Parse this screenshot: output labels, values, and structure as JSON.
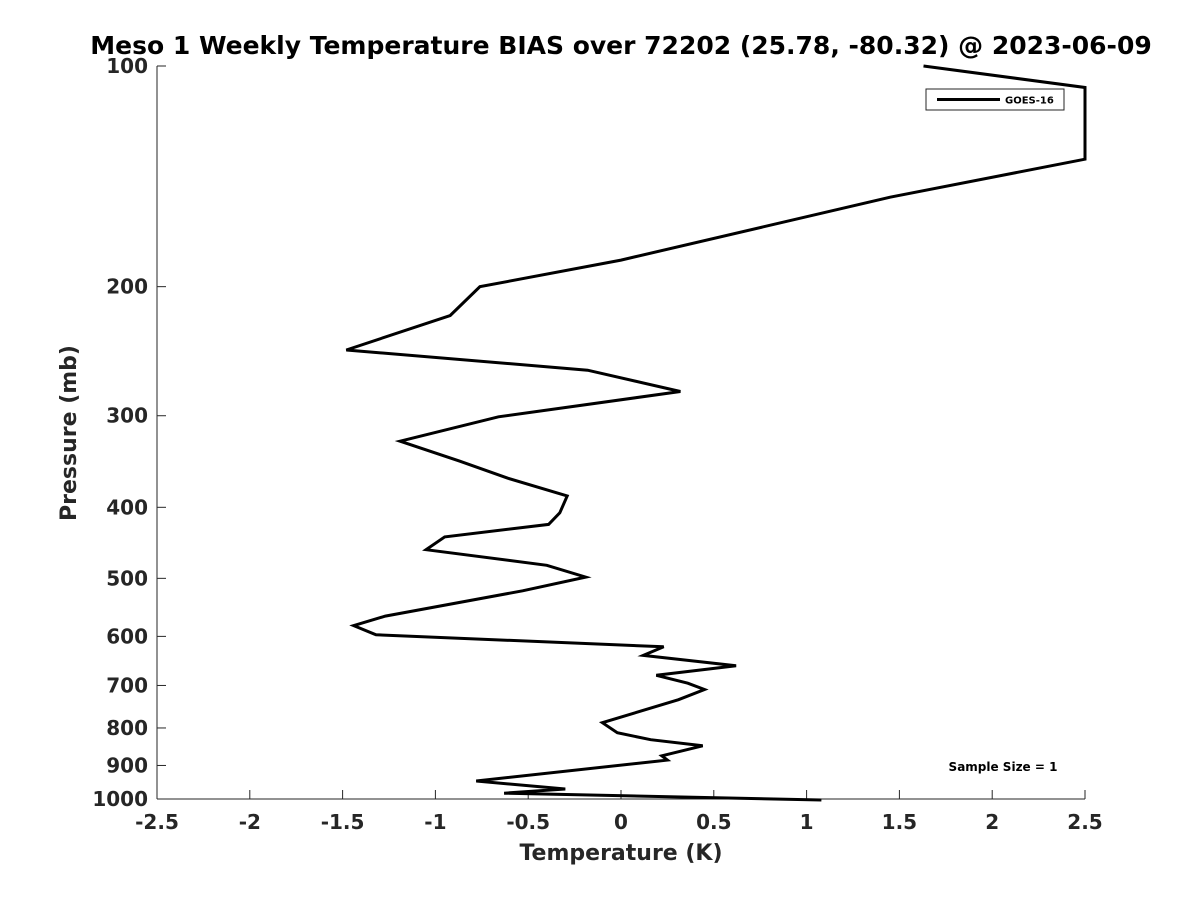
{
  "chart_data": {
    "type": "line",
    "title": "Meso 1 Weekly Temperature BIAS over 72202 (25.78, -80.32) @ 2023-06-09",
    "xlabel": "Temperature (K)",
    "ylabel": "Pressure (mb)",
    "xlim": [
      -2.5,
      2.5
    ],
    "ylim": [
      1000,
      100
    ],
    "y_scale": "log",
    "x_ticks": [
      "-2.5",
      "-2",
      "-1.5",
      "-1",
      "-0.5",
      "0",
      "0.5",
      "1",
      "1.5",
      "2",
      "2.5"
    ],
    "y_ticks": [
      "100",
      "200",
      "300",
      "400",
      "500",
      "600",
      "700",
      "800",
      "900",
      "1000"
    ],
    "grid": false,
    "legend": {
      "position": "top-right",
      "entries": [
        "GOES-16"
      ]
    },
    "annotations": [
      "Sample Size = 1"
    ],
    "line_color": "#000000",
    "series": [
      {
        "name": "GOES-16",
        "points": [
          [
            1.63,
            100
          ],
          [
            2.5,
            107
          ],
          [
            2.5,
            134
          ],
          [
            1.45,
            151
          ],
          [
            0.0,
            184
          ],
          [
            -0.76,
            200
          ],
          [
            -0.92,
            219
          ],
          [
            -1.48,
            244
          ],
          [
            -0.18,
            260
          ],
          [
            0.32,
            278
          ],
          [
            -0.66,
            301
          ],
          [
            -1.19,
            325
          ],
          [
            -0.87,
            346
          ],
          [
            -0.61,
            365
          ],
          [
            -0.29,
            386
          ],
          [
            -0.33,
            407
          ],
          [
            -0.39,
            422
          ],
          [
            -0.95,
            439
          ],
          [
            -1.05,
            457
          ],
          [
            -0.4,
            480
          ],
          [
            -0.19,
            498
          ],
          [
            -0.53,
            520
          ],
          [
            -1.27,
            563
          ],
          [
            -1.44,
            580
          ],
          [
            -1.32,
            597
          ],
          [
            0.23,
            620
          ],
          [
            0.12,
            637
          ],
          [
            0.62,
            658
          ],
          [
            0.19,
            678
          ],
          [
            0.36,
            695
          ],
          [
            0.45,
            709
          ],
          [
            0.31,
            732
          ],
          [
            -0.1,
            787
          ],
          [
            -0.02,
            812
          ],
          [
            0.16,
            830
          ],
          [
            0.44,
            846
          ],
          [
            0.22,
            873
          ],
          [
            0.25,
            885
          ],
          [
            -0.78,
            945
          ],
          [
            -0.3,
            969
          ],
          [
            -0.63,
            982
          ],
          [
            1.08,
            1003
          ]
        ]
      }
    ]
  }
}
